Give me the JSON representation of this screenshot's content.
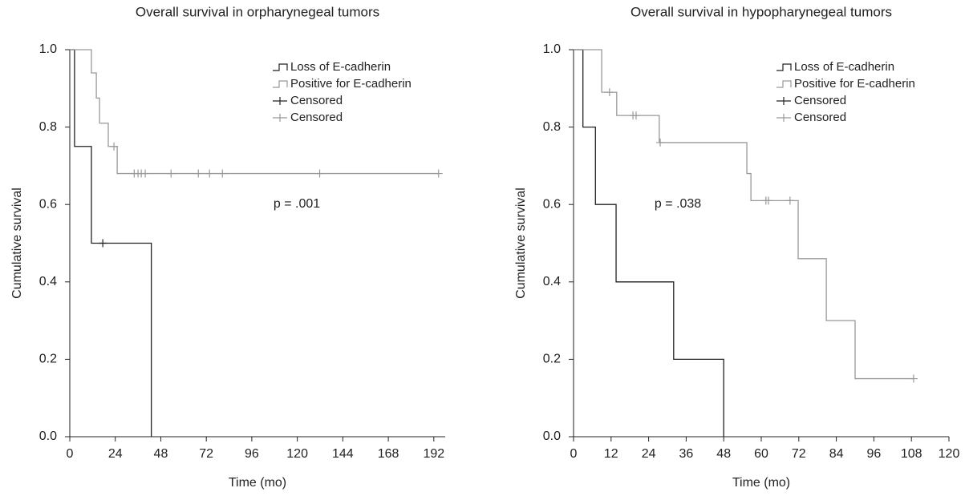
{
  "chart_data": [
    {
      "type": "step",
      "title": "Overall survival in orpharynegeal tumors",
      "x_label": "Time (mo)",
      "y_label": "Cumulative survival",
      "annotation": "p = .001",
      "xlim": [
        0,
        198
      ],
      "xticks": [
        0,
        24,
        48,
        72,
        96,
        120,
        144,
        168,
        192
      ],
      "ylim": [
        0,
        1
      ],
      "yticks": [
        {
          "value": 0,
          "label": "0.0"
        },
        0.2,
        0.4,
        0.6,
        0.8,
        {
          "value": 1,
          "label": "1.0"
        }
      ],
      "legend": "top-right",
      "series": [
        {
          "name": "Loss of E-cadherin",
          "color": "#222222",
          "kind": "step",
          "x": [
            0,
            2.5,
            11.4,
            43
          ],
          "values": [
            1,
            0.75,
            0.5,
            0
          ]
        },
        {
          "name": "Positive for E-cadherin",
          "color": "#999999",
          "kind": "step",
          "x": [
            0,
            11.4,
            14,
            15.7,
            20.3,
            25,
            194.5
          ],
          "values": [
            1,
            0.94,
            0.875,
            0.81,
            0.75,
            0.68,
            0.68
          ]
        },
        {
          "name": "Censored",
          "color": "#222222",
          "kind": "censor",
          "x": [
            17.4
          ],
          "values": [
            0.5
          ]
        },
        {
          "name": "Censored",
          "color": "#999999",
          "kind": "censor",
          "x": [
            23.3,
            34,
            36,
            37.7,
            39.8,
            53.4,
            67.8,
            73.7,
            80.5,
            131.8,
            194.5
          ],
          "values": [
            0.75,
            0.68,
            0.68,
            0.68,
            0.68,
            0.68,
            0.68,
            0.68,
            0.68,
            0.68,
            0.68
          ]
        }
      ]
    },
    {
      "type": "step",
      "title": "Overall survival in hypopharynegeal tumors",
      "x_label": "Time (mo)",
      "y_label": "Cumulative survival",
      "annotation": "p = .038",
      "xlim": [
        0,
        120
      ],
      "xticks": [
        0,
        12,
        24,
        36,
        48,
        60,
        72,
        84,
        96,
        108,
        120
      ],
      "ylim": [
        0,
        1
      ],
      "yticks": [
        {
          "value": 0,
          "label": "0.0"
        },
        0.2,
        0.4,
        0.6,
        0.8,
        {
          "value": 1,
          "label": "1.0"
        }
      ],
      "legend": "top-right",
      "series": [
        {
          "name": "Loss of E-cadherin",
          "color": "#222222",
          "kind": "step",
          "x": [
            0,
            3,
            7,
            13.6,
            32,
            48
          ],
          "values": [
            1,
            0.8,
            0.6,
            0.4,
            0.2,
            0
          ]
        },
        {
          "name": "Positive for E-cadherin",
          "color": "#999999",
          "kind": "step",
          "x": [
            0,
            9,
            13.8,
            27.4,
            55.4,
            56.7,
            71.8,
            80.8,
            90,
            108.7
          ],
          "values": [
            1,
            0.89,
            0.83,
            0.76,
            0.68,
            0.61,
            0.46,
            0.3,
            0.15,
            0.15
          ]
        },
        {
          "name": "Censored",
          "color": "#222222",
          "kind": "censor",
          "x": [],
          "values": []
        },
        {
          "name": "Censored",
          "color": "#999999",
          "kind": "censor",
          "x": [
            11.5,
            19,
            20,
            27.7,
            61.5,
            62.3,
            69.2,
            108.7
          ],
          "values": [
            0.89,
            0.83,
            0.83,
            0.76,
            0.61,
            0.61,
            0.61,
            0.15
          ]
        }
      ]
    }
  ]
}
